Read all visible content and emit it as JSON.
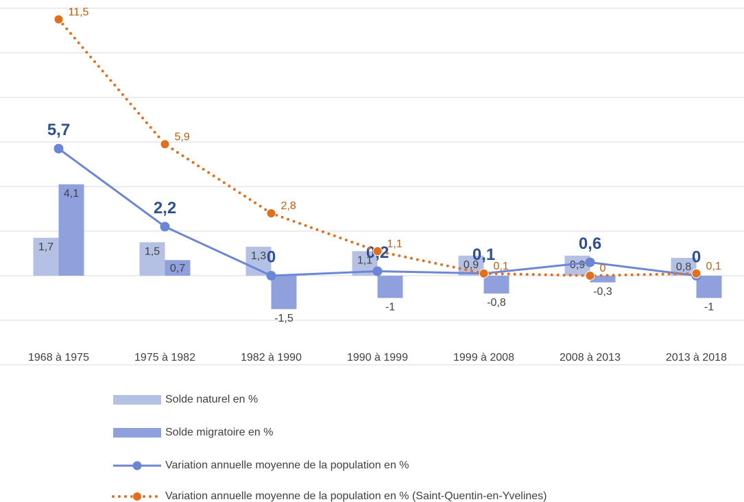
{
  "chart_data": {
    "type": "bar",
    "categories": [
      "1968 à 1975",
      "1975 à 1982",
      "1982 à 1990",
      "1990 à 1999",
      "1999 à 2008",
      "2008 à 2013",
      "2013 à 2018"
    ],
    "ylim": [
      -4,
      12
    ],
    "yticks": [
      -4,
      -2,
      0,
      2,
      4,
      6,
      8,
      10,
      12
    ],
    "grid": true,
    "series": [
      {
        "name": "Solde naturel en %",
        "type": "bar",
        "color": "#b4c0e4",
        "values": [
          1.7,
          1.5,
          1.3,
          1.1,
          0.9,
          0.9,
          0.8
        ],
        "value_labels": [
          "1,7",
          "1,5",
          "1,3",
          "1,1",
          "0,9",
          "0,9",
          "0,8"
        ]
      },
      {
        "name": "Solde migratoire en %",
        "type": "bar",
        "color": "#8fa0dc",
        "values": [
          4.1,
          0.7,
          -1.5,
          -1,
          -0.8,
          -0.3,
          -1
        ],
        "value_labels": [
          "4,1",
          "0,7",
          "-1,5",
          "-1",
          "-0,8",
          "-0,3",
          "-1"
        ]
      },
      {
        "name": "Variation annuelle moyenne de la population en %",
        "type": "line",
        "color": "#6c86d4",
        "values": [
          5.7,
          2.2,
          0,
          0.2,
          0.1,
          0.6,
          0
        ],
        "value_labels": [
          "5,7",
          "2,2",
          "0",
          "0,2",
          "0,1",
          "0,6",
          "0"
        ]
      },
      {
        "name": "Variation annuelle moyenne de la population en % (Saint-Quentin-en-Yvelines)",
        "type": "dotted-line",
        "color": "#e07020",
        "values": [
          11.5,
          5.9,
          2.8,
          1.1,
          0.1,
          0,
          0.1
        ],
        "value_labels": [
          "11,5",
          "5,9",
          "2,8",
          "1,1",
          "0,1",
          "0",
          "0,1"
        ]
      }
    ]
  }
}
